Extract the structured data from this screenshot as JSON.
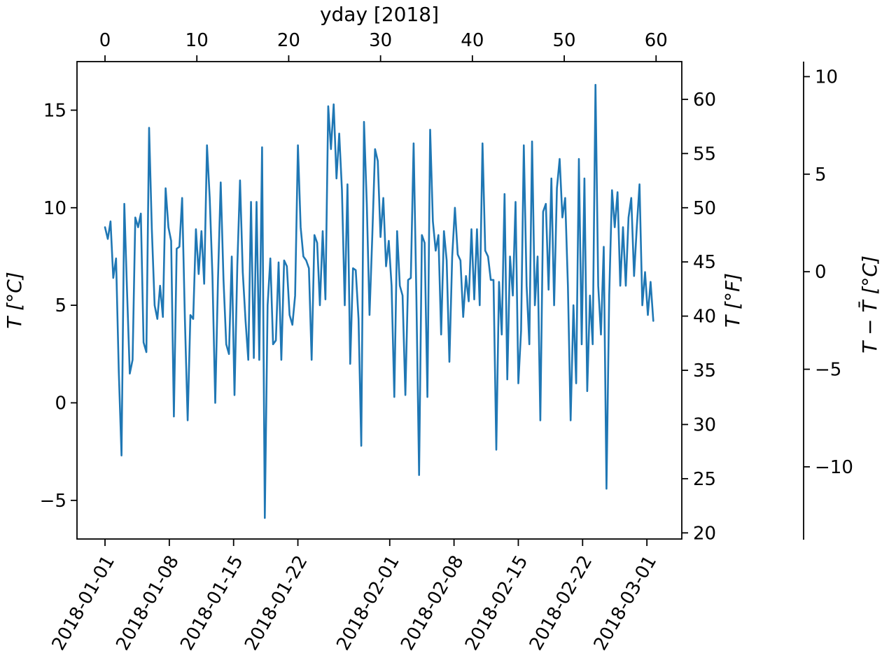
{
  "figure": {
    "background": "#ffffff",
    "spine_color": "#000000"
  },
  "chart_data": {
    "type": "line",
    "title": "",
    "top_axis": {
      "label": "yday [2018]",
      "ticks": [
        0,
        10,
        20,
        30,
        40,
        50,
        60
      ]
    },
    "left_axis": {
      "label": "T [°C]",
      "ticks": [
        -5,
        0,
        5,
        10,
        15
      ]
    },
    "right_axis": {
      "label": "T [°F]",
      "ticks": [
        20,
        25,
        30,
        35,
        40,
        45,
        50,
        55,
        60
      ]
    },
    "anomaly_axis": {
      "label": "T − T̄ [°C]",
      "ticks": [
        10,
        5,
        0,
        -5,
        -10
      ],
      "mean_temp_c": 6.72
    },
    "bottom_axis": {
      "tick_days": [
        0,
        7,
        14,
        21,
        31,
        38,
        45,
        52,
        59
      ],
      "tick_labels": [
        "2018-01-01",
        "2018-01-08",
        "2018-01-15",
        "2018-01-22",
        "2018-02-01",
        "2018-02-08",
        "2018-02-15",
        "2018-02-22",
        "2018-03-01"
      ]
    },
    "xlim_days": [
      -3.05,
      62.8
    ],
    "ylim_c": [
      -6.98,
      17.49
    ],
    "grid": false,
    "legend": "none",
    "series": [
      {
        "name": "temperature",
        "color": "#1f77b4",
        "x_unit": "days since 2018-01-01",
        "x_start_day": 0.0,
        "x_step_days": 0.3,
        "y_c": [
          9.0,
          8.4,
          9.3,
          6.4,
          7.4,
          1.6,
          -2.7,
          10.2,
          5.7,
          1.5,
          2.2,
          9.5,
          9.0,
          9.7,
          3.1,
          2.6,
          14.1,
          8.9,
          5.0,
          4.3,
          6.0,
          4.4,
          11.0,
          9.0,
          8.3,
          -0.7,
          7.9,
          8.0,
          10.5,
          4.2,
          -0.9,
          4.5,
          4.3,
          8.9,
          6.6,
          8.8,
          6.1,
          13.2,
          10.5,
          6.5,
          0.0,
          6.3,
          11.3,
          6.3,
          3.0,
          2.5,
          7.5,
          0.4,
          7.0,
          11.4,
          6.7,
          4.2,
          2.2,
          10.3,
          2.3,
          10.3,
          2.2,
          13.1,
          -5.9,
          5.0,
          7.4,
          3.0,
          3.2,
          7.2,
          2.2,
          7.3,
          7.0,
          4.5,
          4.0,
          5.5,
          13.2,
          9.0,
          7.5,
          7.3,
          6.9,
          2.2,
          8.6,
          8.2,
          5.0,
          8.8,
          5.3,
          15.2,
          13.0,
          15.3,
          11.5,
          13.8,
          10.9,
          5.0,
          11.2,
          2.0,
          6.9,
          6.8,
          4.3,
          -2.2,
          14.4,
          10.2,
          4.5,
          8.5,
          13.0,
          12.4,
          8.5,
          10.5,
          7.0,
          8.3,
          6.0,
          0.3,
          8.8,
          6.0,
          5.5,
          0.4,
          6.3,
          6.4,
          13.3,
          5.5,
          -3.7,
          8.6,
          8.2,
          0.3,
          14.0,
          9.3,
          7.8,
          8.6,
          3.5,
          8.8,
          7.3,
          2.1,
          7.5,
          10.0,
          7.6,
          7.3,
          4.4,
          6.5,
          5.2,
          8.9,
          5.3,
          8.9,
          5.0,
          13.3,
          7.8,
          7.5,
          6.3,
          6.3,
          -2.4,
          6.2,
          3.5,
          10.7,
          1.2,
          7.5,
          5.5,
          10.3,
          1.0,
          3.7,
          13.2,
          6.0,
          3.0,
          13.4,
          5.0,
          7.5,
          -0.9,
          9.8,
          10.2,
          5.8,
          11.5,
          5.0,
          11.0,
          12.5,
          9.5,
          10.5,
          6.0,
          -0.9,
          5.0,
          1.0,
          12.5,
          3.0,
          11.5,
          0.6,
          5.5,
          3.0,
          16.3,
          6.0,
          3.5,
          8.0,
          -4.4,
          5.5,
          10.9,
          9.0,
          10.8,
          6.0,
          9.0,
          6.0,
          9.5,
          10.5,
          6.5,
          9.0,
          11.2,
          5.0,
          6.7,
          4.5,
          6.2,
          4.2
        ]
      }
    ]
  }
}
